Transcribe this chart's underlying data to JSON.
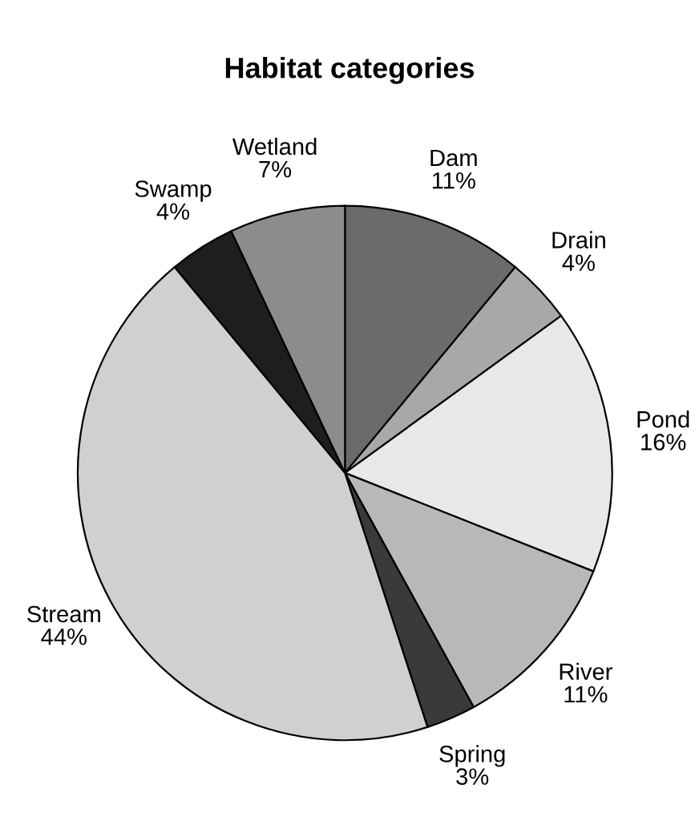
{
  "chart_data": {
    "type": "pie",
    "title": "Habitat categories",
    "categories": [
      "Dam",
      "Drain",
      "Pond",
      "River",
      "Spring",
      "Stream",
      "Swamp",
      "Wetland"
    ],
    "values": [
      11,
      4,
      16,
      11,
      3,
      44,
      4,
      7
    ],
    "colors": [
      "#6b6b6b",
      "#a8a8a8",
      "#e8e8e8",
      "#b8b8b8",
      "#3a3a3a",
      "#d0d0d0",
      "#1e1e1e",
      "#8c8c8c"
    ],
    "value_labels": [
      "11%",
      "4%",
      "16%",
      "11%",
      "3%",
      "44%",
      "4%",
      "7%"
    ],
    "legend": false
  }
}
